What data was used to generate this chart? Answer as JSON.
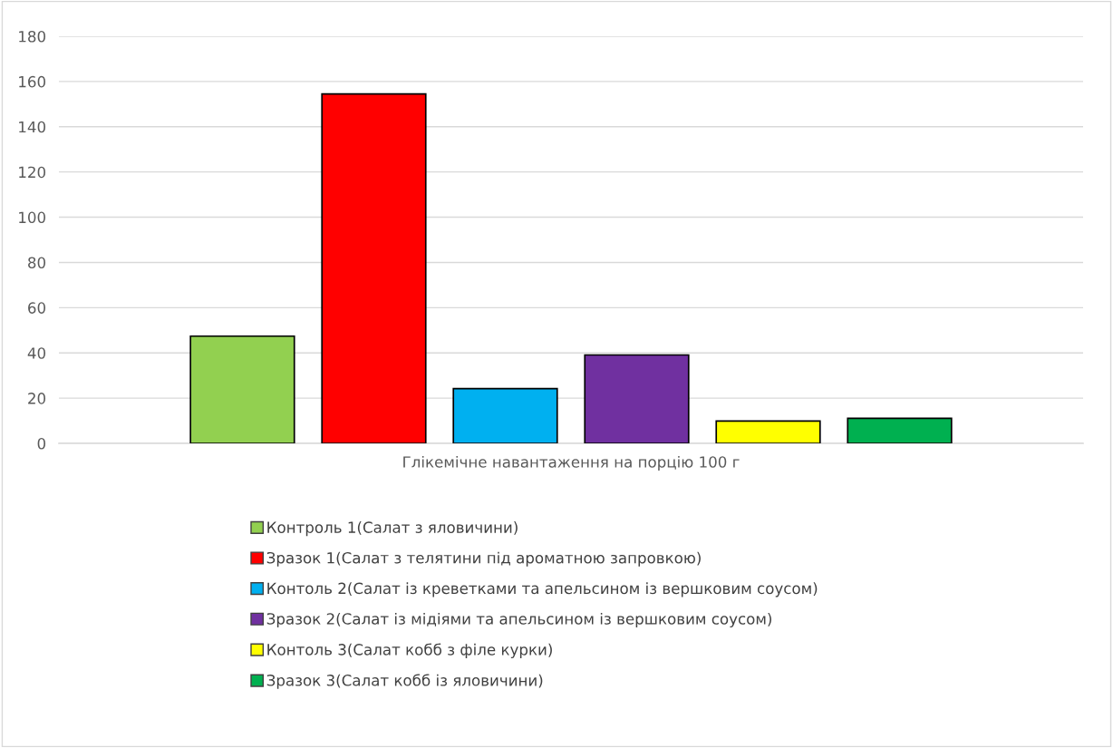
{
  "chart_data": {
    "type": "bar",
    "categories": [
      "Глікемічне навантаження на порцію 100 г"
    ],
    "series": [
      {
        "name": "Контроль 1(Салат з яловичини)",
        "color": "#92d050",
        "values": [
          47.4
        ]
      },
      {
        "name": "Зразок 1(Салат з телятини під ароматною запровкою)",
        "color": "#ff0000",
        "values": [
          154.5
        ]
      },
      {
        "name": "Контоль 2(Салат із креветками та апельсином із вершковим соусом)",
        "color": "#00b0f0",
        "values": [
          24.2
        ]
      },
      {
        "name": "Зразок 2(Салат із мідіями та апельсином із вершковим соусом)",
        "color": "#7030a0",
        "values": [
          39.1
        ]
      },
      {
        "name": "Контоль 3(Салат кобб з філе курки)",
        "color": "#ffff00",
        "values": [
          9.9
        ]
      },
      {
        "name": "Зразок 3(Салат кобб із яловичини)",
        "color": "#00b050",
        "values": [
          11.1
        ]
      }
    ],
    "ylim": [
      0,
      180
    ],
    "yticks": [
      0,
      20,
      40,
      60,
      80,
      100,
      120,
      140,
      160,
      180
    ],
    "grid": "y",
    "legend": "bottom"
  }
}
